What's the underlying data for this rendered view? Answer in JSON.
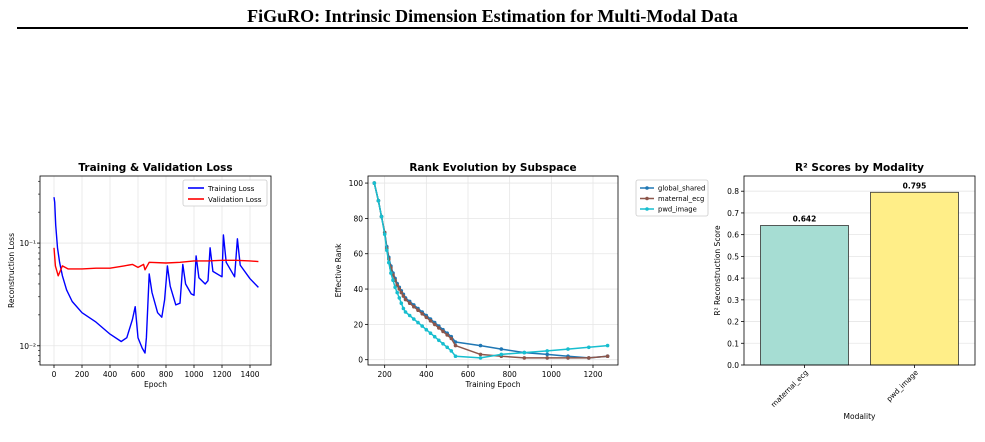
{
  "page": {
    "title": "FiGuRO: Intrinsic Dimension Estimation for Multi-Modal Data"
  },
  "charts": [
    {
      "type": "line",
      "title": "Training & Validation Loss",
      "xlabel": "Epoch",
      "ylabel": "Reconstruction Loss",
      "yscale": "log",
      "xlim": [
        -100,
        1550
      ],
      "ylim": [
        0.0065,
        0.45
      ],
      "xticks": [
        "0",
        "200",
        "400",
        "600",
        "800",
        "1000",
        "1200",
        "1400"
      ],
      "yticks": [
        "10⁻²",
        "10⁻¹"
      ],
      "grid": true,
      "legend_position": "top-right",
      "series": [
        {
          "name": "Training Loss",
          "color": "#0000ff",
          "points": [
            [
              0,
              0.28
            ],
            [
              5,
              0.25
            ],
            [
              12,
              0.15
            ],
            [
              25,
              0.09
            ],
            [
              40,
              0.065
            ],
            [
              60,
              0.048
            ],
            [
              90,
              0.035
            ],
            [
              130,
              0.027
            ],
            [
              200,
              0.021
            ],
            [
              300,
              0.017
            ],
            [
              400,
              0.013
            ],
            [
              480,
              0.011
            ],
            [
              520,
              0.012
            ],
            [
              560,
              0.018
            ],
            [
              580,
              0.024
            ],
            [
              600,
              0.012
            ],
            [
              630,
              0.0095
            ],
            [
              650,
              0.0085
            ],
            [
              660,
              0.012
            ],
            [
              680,
              0.05
            ],
            [
              700,
              0.033
            ],
            [
              740,
              0.021
            ],
            [
              770,
              0.019
            ],
            [
              790,
              0.028
            ],
            [
              810,
              0.06
            ],
            [
              830,
              0.038
            ],
            [
              870,
              0.025
            ],
            [
              900,
              0.026
            ],
            [
              920,
              0.062
            ],
            [
              940,
              0.04
            ],
            [
              980,
              0.032
            ],
            [
              1000,
              0.031
            ],
            [
              1015,
              0.075
            ],
            [
              1035,
              0.046
            ],
            [
              1080,
              0.04
            ],
            [
              1100,
              0.043
            ],
            [
              1115,
              0.09
            ],
            [
              1135,
              0.053
            ],
            [
              1200,
              0.047
            ],
            [
              1210,
              0.12
            ],
            [
              1230,
              0.065
            ],
            [
              1290,
              0.047
            ],
            [
              1310,
              0.11
            ],
            [
              1330,
              0.061
            ],
            [
              1400,
              0.045
            ],
            [
              1460,
              0.037
            ]
          ]
        },
        {
          "name": "Validation Loss",
          "color": "#ff0000",
          "points": [
            [
              0,
              0.09
            ],
            [
              10,
              0.06
            ],
            [
              30,
              0.048
            ],
            [
              60,
              0.06
            ],
            [
              100,
              0.056
            ],
            [
              200,
              0.056
            ],
            [
              300,
              0.057
            ],
            [
              400,
              0.057
            ],
            [
              500,
              0.06
            ],
            [
              560,
              0.062
            ],
            [
              600,
              0.058
            ],
            [
              640,
              0.062
            ],
            [
              650,
              0.055
            ],
            [
              680,
              0.065
            ],
            [
              800,
              0.064
            ],
            [
              900,
              0.065
            ],
            [
              1000,
              0.067
            ],
            [
              1100,
              0.067
            ],
            [
              1200,
              0.068
            ],
            [
              1300,
              0.068
            ],
            [
              1400,
              0.067
            ],
            [
              1460,
              0.066
            ]
          ]
        }
      ]
    },
    {
      "type": "line",
      "title": "Rank Evolution by Subspace",
      "xlabel": "Training Epoch",
      "ylabel": "Effective Rank",
      "xlim": [
        120,
        1320
      ],
      "ylim": [
        -3,
        104
      ],
      "xticks": [
        "200",
        "400",
        "600",
        "800",
        "1000",
        "1200"
      ],
      "yticks": [
        "0",
        "20",
        "40",
        "60",
        "80",
        "100"
      ],
      "grid": true,
      "legend_position": "outside-right",
      "series": [
        {
          "name": "global_shared",
          "color": "#1f77b4",
          "points": [
            [
              150,
              100
            ],
            [
              170,
              90
            ],
            [
              185,
              81
            ],
            [
              200,
              72
            ],
            [
              210,
              64
            ],
            [
              220,
              58
            ],
            [
              230,
              53
            ],
            [
              240,
              49
            ],
            [
              250,
              46
            ],
            [
              260,
              43
            ],
            [
              270,
              41
            ],
            [
              280,
              39
            ],
            [
              290,
              37
            ],
            [
              300,
              35
            ],
            [
              320,
              33
            ],
            [
              340,
              31
            ],
            [
              360,
              29
            ],
            [
              380,
              27
            ],
            [
              400,
              25
            ],
            [
              420,
              23
            ],
            [
              440,
              21
            ],
            [
              460,
              19
            ],
            [
              480,
              17
            ],
            [
              500,
              15
            ],
            [
              520,
              13
            ],
            [
              540,
              10
            ],
            [
              660,
              8
            ],
            [
              760,
              6
            ],
            [
              870,
              4
            ],
            [
              980,
              3
            ],
            [
              1080,
              2
            ],
            [
              1180,
              1
            ],
            [
              1270,
              2
            ]
          ]
        },
        {
          "name": "maternal_ecg",
          "color": "#8c564b",
          "points": [
            [
              150,
              100
            ],
            [
              170,
              90
            ],
            [
              185,
              81
            ],
            [
              200,
              72
            ],
            [
              210,
              63
            ],
            [
              220,
              57
            ],
            [
              230,
              52
            ],
            [
              240,
              48
            ],
            [
              250,
              45
            ],
            [
              260,
              42
            ],
            [
              270,
              40
            ],
            [
              280,
              38
            ],
            [
              290,
              36
            ],
            [
              300,
              34
            ],
            [
              320,
              32
            ],
            [
              340,
              30
            ],
            [
              360,
              28
            ],
            [
              380,
              26
            ],
            [
              400,
              24
            ],
            [
              420,
              22
            ],
            [
              440,
              20
            ],
            [
              460,
              18
            ],
            [
              480,
              16
            ],
            [
              500,
              14
            ],
            [
              520,
              12
            ],
            [
              540,
              8
            ],
            [
              660,
              3
            ],
            [
              760,
              2
            ],
            [
              870,
              1
            ],
            [
              980,
              1
            ],
            [
              1080,
              1
            ],
            [
              1180,
              1
            ],
            [
              1270,
              2
            ]
          ]
        },
        {
          "name": "pwd_image",
          "color": "#17becf",
          "points": [
            [
              150,
              100
            ],
            [
              170,
              90
            ],
            [
              185,
              81
            ],
            [
              200,
              71
            ],
            [
              210,
              62
            ],
            [
              220,
              55
            ],
            [
              230,
              49
            ],
            [
              240,
              45
            ],
            [
              250,
              41
            ],
            [
              260,
              38
            ],
            [
              270,
              35
            ],
            [
              280,
              32
            ],
            [
              290,
              29
            ],
            [
              300,
              27
            ],
            [
              320,
              25
            ],
            [
              340,
              23
            ],
            [
              360,
              21
            ],
            [
              380,
              19
            ],
            [
              400,
              17
            ],
            [
              420,
              15
            ],
            [
              440,
              13
            ],
            [
              460,
              11
            ],
            [
              480,
              9
            ],
            [
              500,
              7
            ],
            [
              520,
              5
            ],
            [
              540,
              2
            ],
            [
              660,
              1
            ],
            [
              760,
              3
            ],
            [
              870,
              4
            ],
            [
              980,
              5
            ],
            [
              1080,
              6
            ],
            [
              1180,
              7
            ],
            [
              1270,
              8
            ]
          ]
        }
      ]
    },
    {
      "type": "bar",
      "title": "R² Scores by Modality",
      "xlabel": "Modality",
      "ylabel": "R² Reconstruction Score",
      "ylim": [
        0,
        0.87
      ],
      "yticks": [
        "0.0",
        "0.1",
        "0.2",
        "0.3",
        "0.4",
        "0.5",
        "0.6",
        "0.7",
        "0.8"
      ],
      "grid": true,
      "categories": [
        "maternal_ecg",
        "pwd_image"
      ],
      "values": [
        0.642,
        0.795
      ],
      "value_labels": [
        "0.642",
        "0.795"
      ],
      "colors": [
        "#a6ddd3",
        "#ffee88"
      ]
    }
  ]
}
